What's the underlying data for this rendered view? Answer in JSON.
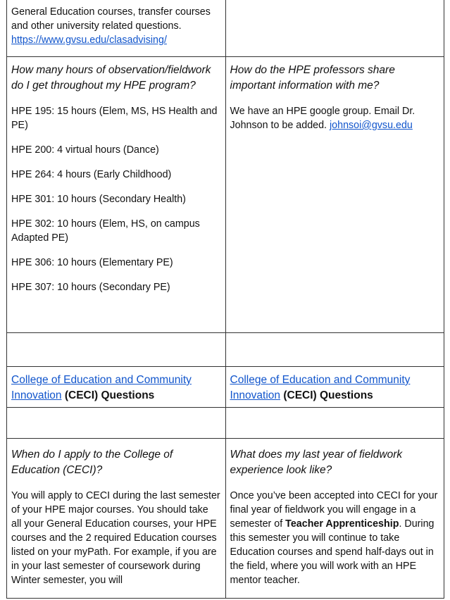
{
  "row1": {
    "left_text": "General Education courses, transfer courses and other university related questions.",
    "left_link": "https://www.gvsu.edu/clasadvising/"
  },
  "row2": {
    "left_question": "How many hours of observation/fieldwork do I get throughout my HPE program?",
    "left_items": [
      "HPE 195: 15 hours (Elem, MS, HS Health and PE)",
      "HPE 200:  4 virtual hours (Dance)",
      "HPE 264: 4 hours (Early Childhood)",
      "HPE 301: 10 hours (Secondary Health)",
      "HPE 302: 10 hours (Elem, HS, on campus Adapted PE)",
      "HPE 306: 10 hours (Elementary PE)",
      "HPE 307: 10 hours (Secondary PE)"
    ],
    "right_question": "How do the HPE professors share important information with me?",
    "right_text": "We have an HPE google group. Email Dr. Johnson to be added. ",
    "right_link": "johnsoi@gvsu.edu"
  },
  "row4": {
    "link": "College of Education and Community Innovation",
    "bold": " (CECI) Questions"
  },
  "row6": {
    "left_question": "When do I apply to the College of Education (CECI)?",
    "left_text": "You will apply to CECI during the last semester of your HPE major courses. You should take all your General Education courses, your HPE courses and the 2 required Education courses listed on your myPath. For example, if you are in your last semester of coursework during Winter semester, you will",
    "right_question": "What does my last year of fieldwork experience look like?",
    "right_text_1": "Once you’ve been accepted into CECI for your final year of fieldwork you will engage in a semester of ",
    "right_bold": "Teacher Apprenticeship",
    "right_text_2": ". During this semester you will continue to take Education courses and spend half-days out in the field, where you will work with an HPE mentor teacher."
  }
}
